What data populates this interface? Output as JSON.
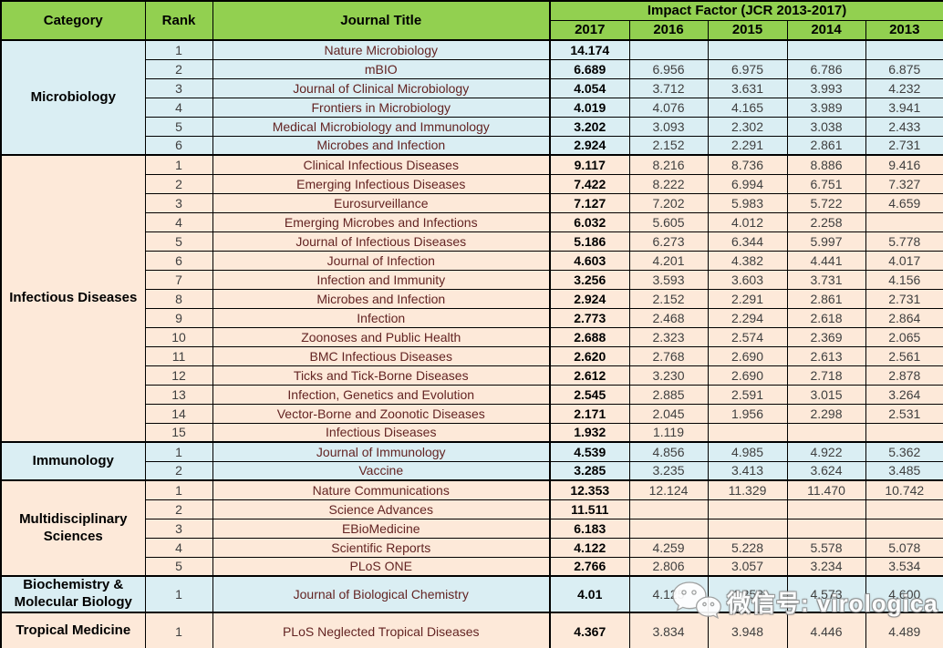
{
  "chart_data": {
    "type": "table",
    "title": "Impact Factor (JCR 2013-2017)",
    "headers": {
      "category": "Category",
      "rank": "Rank",
      "journal_title": "Journal Title",
      "impact_factor_group": "Impact Factor (JCR 2013-2017)",
      "years": [
        "2017",
        "2016",
        "2015",
        "2014",
        "2013"
      ]
    },
    "sections": [
      {
        "category": "Microbiology",
        "theme": "blue",
        "rows": [
          {
            "rank": "1",
            "journal": "Nature Microbiology",
            "values": [
              "14.174",
              "",
              "",
              "",
              ""
            ]
          },
          {
            "rank": "2",
            "journal": "mBIO",
            "values": [
              "6.689",
              "6.956",
              "6.975",
              "6.786",
              "6.875"
            ]
          },
          {
            "rank": "3",
            "journal": "Journal of Clinical Microbiology",
            "values": [
              "4.054",
              "3.712",
              "3.631",
              "3.993",
              "4.232"
            ]
          },
          {
            "rank": "4",
            "journal": "Frontiers in Microbiology",
            "values": [
              "4.019",
              "4.076",
              "4.165",
              "3.989",
              "3.941"
            ]
          },
          {
            "rank": "5",
            "journal": "Medical Microbiology and Immunology",
            "values": [
              "3.202",
              "3.093",
              "2.302",
              "3.038",
              "2.433"
            ]
          },
          {
            "rank": "6",
            "journal": "Microbes and Infection",
            "values": [
              "2.924",
              "2.152",
              "2.291",
              "2.861",
              "2.731"
            ]
          }
        ]
      },
      {
        "category": "Infectious Diseases",
        "theme": "peach",
        "rows": [
          {
            "rank": "1",
            "journal": "Clinical Infectious Diseases",
            "values": [
              "9.117",
              "8.216",
              "8.736",
              "8.886",
              "9.416"
            ]
          },
          {
            "rank": "2",
            "journal": "Emerging Infectious Diseases",
            "values": [
              "7.422",
              "8.222",
              "6.994",
              "6.751",
              "7.327"
            ]
          },
          {
            "rank": "3",
            "journal": "Eurosurveillance",
            "values": [
              "7.127",
              "7.202",
              "5.983",
              "5.722",
              "4.659"
            ]
          },
          {
            "rank": "4",
            "journal": "Emerging Microbes and Infections",
            "values": [
              "6.032",
              "5.605",
              "4.012",
              "2.258",
              ""
            ]
          },
          {
            "rank": "5",
            "journal": "Journal of Infectious Diseases",
            "values": [
              "5.186",
              "6.273",
              "6.344",
              "5.997",
              "5.778"
            ]
          },
          {
            "rank": "6",
            "journal": "Journal of Infection",
            "values": [
              "4.603",
              "4.201",
              "4.382",
              "4.441",
              "4.017"
            ]
          },
          {
            "rank": "7",
            "journal": "Infection and Immunity",
            "values": [
              "3.256",
              "3.593",
              "3.603",
              "3.731",
              "4.156"
            ]
          },
          {
            "rank": "8",
            "journal": "Microbes and Infection",
            "values": [
              "2.924",
              "2.152",
              "2.291",
              "2.861",
              "2.731"
            ]
          },
          {
            "rank": "9",
            "journal": "Infection",
            "values": [
              "2.773",
              "2.468",
              "2.294",
              "2.618",
              "2.864"
            ]
          },
          {
            "rank": "10",
            "journal": "Zoonoses and Public Health",
            "values": [
              "2.688",
              "2.323",
              "2.574",
              "2.369",
              "2.065"
            ]
          },
          {
            "rank": "11",
            "journal": "BMC Infectious Diseases",
            "values": [
              "2.620",
              "2.768",
              "2.690",
              "2.613",
              "2.561"
            ]
          },
          {
            "rank": "12",
            "journal": "Ticks and Tick-Borne Diseases",
            "values": [
              "2.612",
              "3.230",
              "2.690",
              "2.718",
              "2.878"
            ]
          },
          {
            "rank": "13",
            "journal": "Infection, Genetics and Evolution",
            "values": [
              "2.545",
              "2.885",
              "2.591",
              "3.015",
              "3.264"
            ]
          },
          {
            "rank": "14",
            "journal": "Vector-Borne and Zoonotic Diseases",
            "values": [
              "2.171",
              "2.045",
              "1.956",
              "2.298",
              "2.531"
            ]
          },
          {
            "rank": "15",
            "journal": "Infectious Diseases",
            "values": [
              "1.932",
              "1.119",
              "",
              "",
              ""
            ]
          }
        ]
      },
      {
        "category": "Immunology",
        "theme": "blue",
        "rows": [
          {
            "rank": "1",
            "journal": "Journal of Immunology",
            "values": [
              "4.539",
              "4.856",
              "4.985",
              "4.922",
              "5.362"
            ]
          },
          {
            "rank": "2",
            "journal": "Vaccine",
            "values": [
              "3.285",
              "3.235",
              "3.413",
              "3.624",
              "3.485"
            ]
          }
        ]
      },
      {
        "category": "Multidisciplinary Sciences",
        "theme": "peach",
        "rows": [
          {
            "rank": "1",
            "journal": "Nature Communications",
            "values": [
              "12.353",
              "12.124",
              "11.329",
              "11.470",
              "10.742"
            ]
          },
          {
            "rank": "2",
            "journal": "Science Advances",
            "values": [
              "11.511",
              "",
              "",
              "",
              ""
            ]
          },
          {
            "rank": "3",
            "journal": "EBioMedicine",
            "values": [
              "6.183",
              "",
              "",
              "",
              ""
            ]
          },
          {
            "rank": "4",
            "journal": "Scientific Reports",
            "values": [
              "4.122",
              "4.259",
              "5.228",
              "5.578",
              "5.078"
            ]
          },
          {
            "rank": "5",
            "journal": "PLoS ONE",
            "values": [
              "2.766",
              "2.806",
              "3.057",
              "3.234",
              "3.534"
            ]
          }
        ]
      },
      {
        "category": "Biochemistry & Molecular Biology",
        "theme": "blue",
        "tall": "tall1",
        "rows": [
          {
            "rank": "1",
            "journal": "Journal of Biological Chemistry",
            "values": [
              "4.01",
              "4.125",
              "4.258",
              "4.573",
              "4.600"
            ]
          }
        ]
      },
      {
        "category": "Tropical Medicine",
        "theme": "peach",
        "tall": "tall2",
        "rows": [
          {
            "rank": "1",
            "journal": "PLoS Neglected Tropical Diseases",
            "values": [
              "4.367",
              "3.834",
              "3.948",
              "4.446",
              "4.489"
            ]
          }
        ]
      }
    ]
  },
  "watermark": {
    "icon": "wechat-icon",
    "text": "微信号: virologica"
  },
  "colors": {
    "header_green": "#92D050",
    "row_blue": "#DAEEF3",
    "row_peach": "#FDE9D9",
    "journal_text": "#632423",
    "border": "#000000"
  }
}
